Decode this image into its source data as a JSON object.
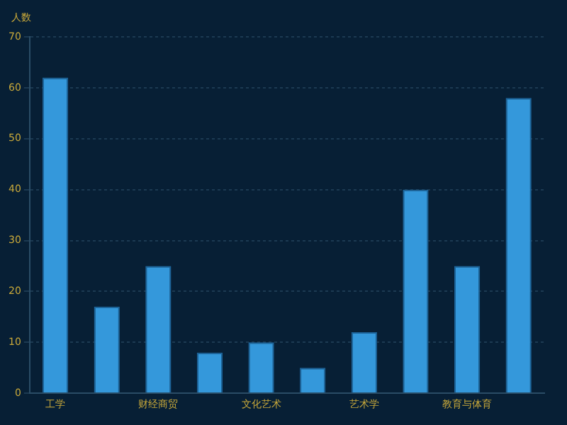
{
  "chart_data": {
    "type": "bar",
    "ylabel": "人数",
    "categories": [
      "工学",
      null,
      "财经商贸",
      null,
      "文化艺术",
      null,
      "艺术学",
      null,
      "教育与体育",
      null
    ],
    "values": [
      62,
      17,
      25,
      8,
      10,
      5,
      12,
      40,
      25,
      58
    ],
    "color": "#3498db",
    "ylim": [
      0,
      70
    ],
    "yticks": [
      0,
      10,
      20,
      30,
      40,
      50,
      60,
      70
    ],
    "grid": "y"
  }
}
